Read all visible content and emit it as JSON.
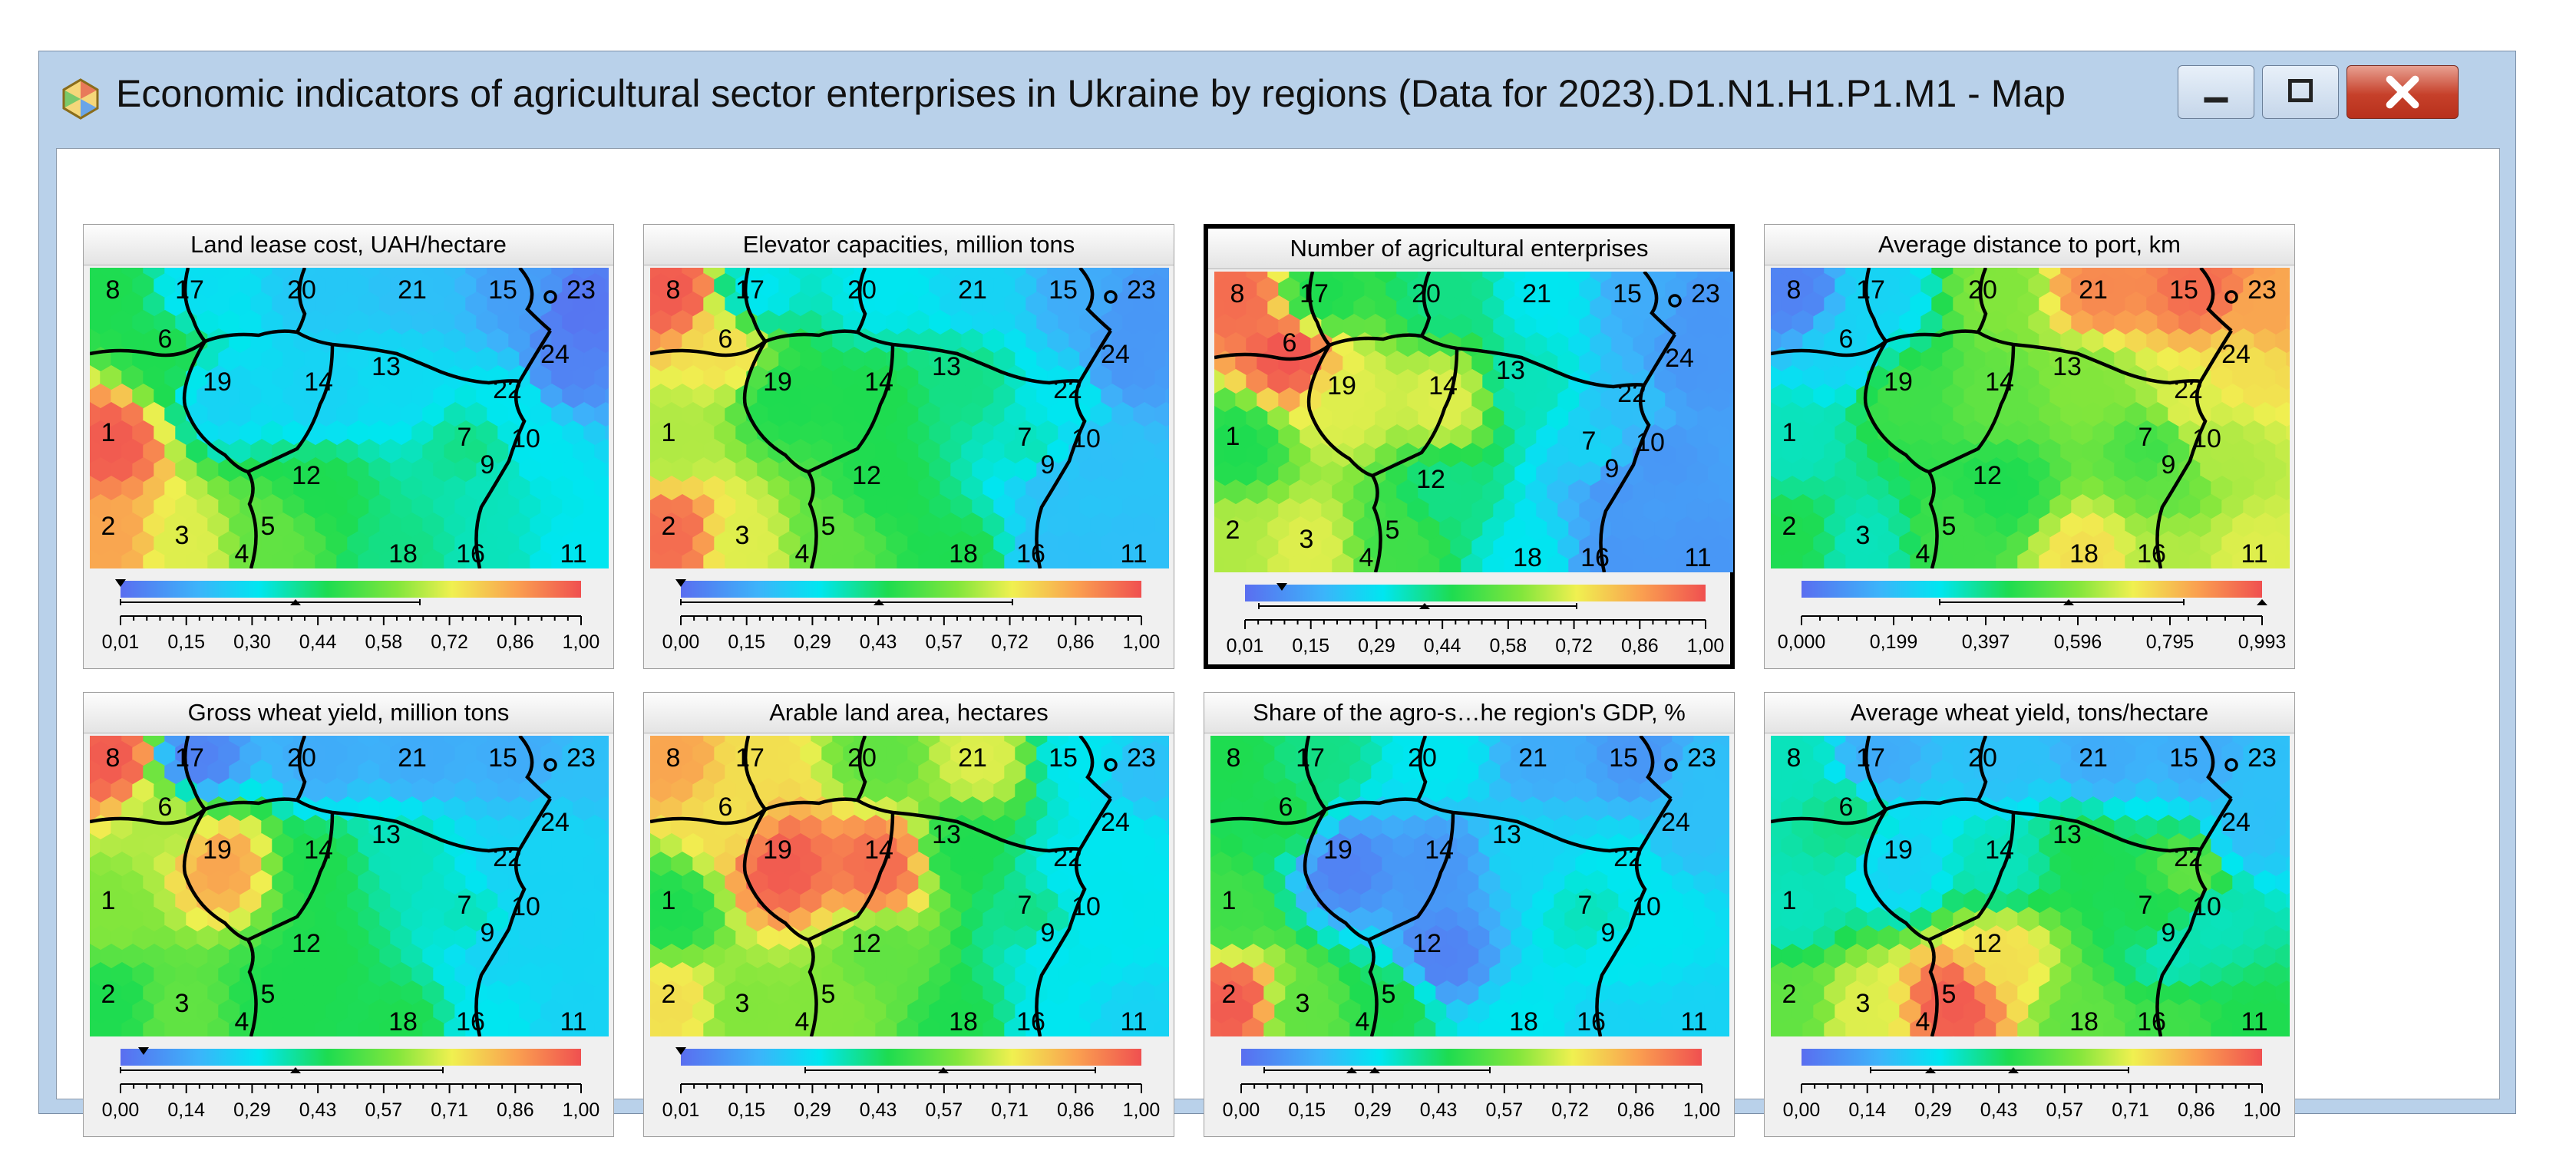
{
  "window": {
    "title": "Economic indicators of agricultural sector enterprises in Ukraine by regions (Data for 2023).D1.N1.H1.P1.M1 - Map",
    "icon": "som-map-icon",
    "buttons": {
      "minimize": "minimize-icon",
      "maximize": "maximize-icon",
      "close": "close-icon"
    }
  },
  "regions": [
    "8",
    "17",
    "20",
    "21",
    "15",
    "23",
    "6",
    "24",
    "19",
    "14",
    "13",
    "22",
    "1",
    "7",
    "10",
    "9",
    "12",
    "2",
    "3",
    "5",
    "4",
    "18",
    "16",
    "11"
  ],
  "panels": [
    {
      "title": "Land lease cost, UAH/hectare",
      "ticks": [
        "0,01",
        "0,15",
        "0,30",
        "0,44",
        "0,58",
        "0,72",
        "0,86",
        "1,00"
      ],
      "selected": false,
      "legend": {
        "markers": [
          0.0,
          0.38
        ],
        "range": [
          0.0,
          0.65
        ]
      }
    },
    {
      "title": "Elevator capacities, million tons",
      "ticks": [
        "0,00",
        "0,15",
        "0,29",
        "0,43",
        "0,57",
        "0,72",
        "0,86",
        "1,00"
      ],
      "selected": false,
      "legend": {
        "markers": [
          0.0,
          0.43
        ],
        "range": [
          0.0,
          0.72
        ]
      }
    },
    {
      "title": "Number of agricultural enterprises",
      "ticks": [
        "0,01",
        "0,15",
        "0,29",
        "0,44",
        "0,58",
        "0,72",
        "0,86",
        "1,00"
      ],
      "selected": true,
      "legend": {
        "markers": [
          0.08,
          0.39
        ],
        "range": [
          0.03,
          0.72
        ]
      }
    },
    {
      "title": "Average distance to port, km",
      "ticks": [
        "0,000",
        "0,199",
        "0,397",
        "0,596",
        "0,795",
        "0,993"
      ],
      "selected": false,
      "legend": {
        "markers": [
          0.58,
          1.0
        ],
        "range": [
          0.3,
          0.83
        ]
      }
    },
    {
      "title": "Gross wheat yield, million tons",
      "ticks": [
        "0,00",
        "0,14",
        "0,29",
        "0,43",
        "0,57",
        "0,71",
        "0,86",
        "1,00"
      ],
      "selected": false,
      "legend": {
        "markers": [
          0.05,
          0.38
        ],
        "range": [
          0.0,
          0.7
        ]
      }
    },
    {
      "title": "Arable land area, hectares",
      "ticks": [
        "0,01",
        "0,15",
        "0,29",
        "0,43",
        "0,57",
        "0,71",
        "0,86",
        "1,00"
      ],
      "selected": false,
      "legend": {
        "markers": [
          0.0,
          0.57
        ],
        "range": [
          0.27,
          0.9
        ]
      }
    },
    {
      "title": "Share of the agro-s…he region's GDP, %",
      "ticks": [
        "0,00",
        "0,15",
        "0,29",
        "0,43",
        "0,57",
        "0,72",
        "0,86",
        "1,00"
      ],
      "selected": false,
      "legend": {
        "markers": [
          0.24,
          0.29
        ],
        "range": [
          0.05,
          0.54
        ]
      }
    },
    {
      "title": "Average wheat yield, tons/hectare",
      "ticks": [
        "0,00",
        "0,14",
        "0,29",
        "0,43",
        "0,57",
        "0,71",
        "0,86",
        "1,00"
      ],
      "selected": false,
      "legend": {
        "markers": [
          0.28,
          0.46
        ],
        "range": [
          0.15,
          0.71
        ]
      }
    }
  ]
}
